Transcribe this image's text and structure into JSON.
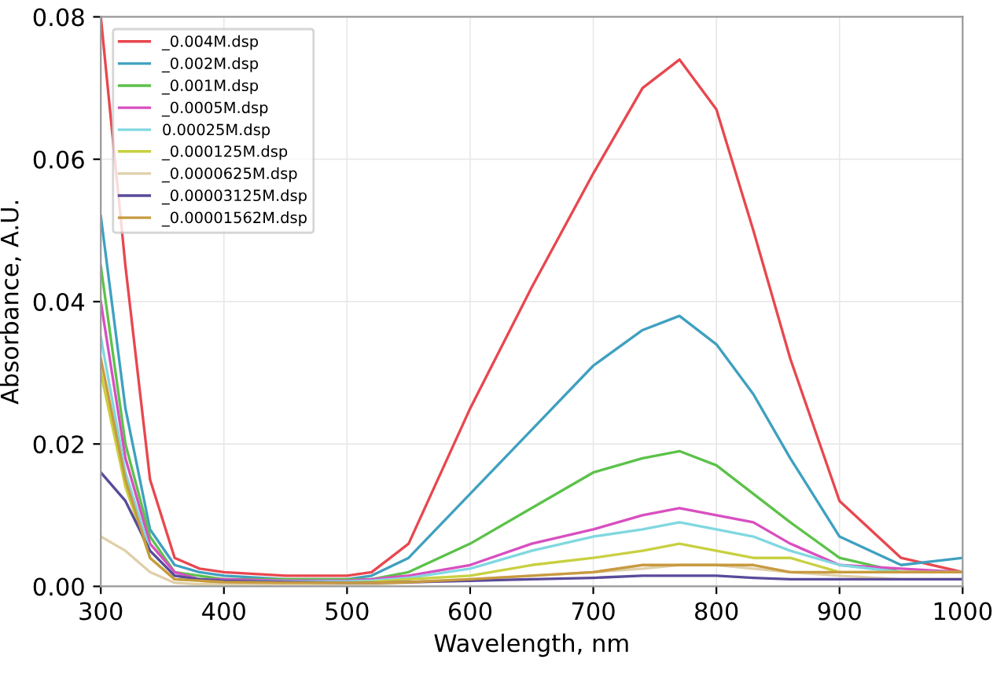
{
  "chart_data": {
    "type": "line",
    "xlabel": "Wavelength, nm",
    "ylabel": "Absorbance, A.U.",
    "x": [
      300,
      320,
      340,
      360,
      380,
      400,
      450,
      500,
      520,
      550,
      600,
      650,
      700,
      740,
      770,
      800,
      830,
      860,
      900,
      950,
      1000
    ],
    "series": [
      {
        "name": "_0.004M.dsp",
        "color": "#e8474f",
        "values": [
          0.08,
          0.045,
          0.015,
          0.004,
          0.0025,
          0.002,
          0.0015,
          0.0015,
          0.002,
          0.006,
          0.025,
          0.042,
          0.058,
          0.07,
          0.074,
          0.067,
          0.05,
          0.032,
          0.012,
          0.004,
          0.002
        ]
      },
      {
        "name": "_0.002M.dsp",
        "color": "#3fa0c0",
        "values": [
          0.052,
          0.025,
          0.008,
          0.003,
          0.002,
          0.0015,
          0.001,
          0.001,
          0.0015,
          0.004,
          0.013,
          0.022,
          0.031,
          0.036,
          0.038,
          0.034,
          0.027,
          0.018,
          0.007,
          0.003,
          0.004
        ]
      },
      {
        "name": "_0.001M.dsp",
        "color": "#5cc24a",
        "values": [
          0.045,
          0.02,
          0.007,
          0.002,
          0.0015,
          0.001,
          0.001,
          0.001,
          0.001,
          0.002,
          0.006,
          0.011,
          0.016,
          0.018,
          0.019,
          0.017,
          0.013,
          0.009,
          0.004,
          0.002,
          0.002
        ]
      },
      {
        "name": "_0.0005M.dsp",
        "color": "#d84fc0",
        "values": [
          0.04,
          0.018,
          0.006,
          0.002,
          0.001,
          0.001,
          0.0008,
          0.0008,
          0.001,
          0.0015,
          0.003,
          0.006,
          0.008,
          0.01,
          0.011,
          0.01,
          0.009,
          0.006,
          0.003,
          0.0025,
          0.002
        ]
      },
      {
        "name": "0.00025M.dsp",
        "color": "#80d8e0",
        "values": [
          0.035,
          0.016,
          0.005,
          0.0015,
          0.001,
          0.0008,
          0.0007,
          0.0007,
          0.0008,
          0.0012,
          0.0025,
          0.005,
          0.007,
          0.008,
          0.009,
          0.008,
          0.007,
          0.005,
          0.003,
          0.002,
          0.002
        ]
      },
      {
        "name": "_0.000125M.dsp",
        "color": "#c8d040",
        "values": [
          0.03,
          0.014,
          0.004,
          0.001,
          0.0008,
          0.0006,
          0.0005,
          0.0005,
          0.0006,
          0.001,
          0.0015,
          0.003,
          0.004,
          0.005,
          0.006,
          0.005,
          0.004,
          0.004,
          0.002,
          0.002,
          0.002
        ]
      },
      {
        "name": "_0.0000625M.dsp",
        "color": "#e0d0a8",
        "values": [
          0.007,
          0.005,
          0.002,
          0.0005,
          0.0003,
          0.0003,
          0.0003,
          0.0003,
          0.0003,
          0.0005,
          0.001,
          0.0015,
          0.002,
          0.0025,
          0.003,
          0.003,
          0.0025,
          0.002,
          0.0015,
          0.001,
          0.001
        ]
      },
      {
        "name": "_0.00003125M.dsp",
        "color": "#5a4a9a",
        "values": [
          0.016,
          0.012,
          0.005,
          0.0015,
          0.001,
          0.0008,
          0.0006,
          0.0005,
          0.0005,
          0.0006,
          0.0008,
          0.001,
          0.0012,
          0.0015,
          0.0015,
          0.0015,
          0.0012,
          0.001,
          0.001,
          0.001,
          0.001
        ]
      },
      {
        "name": "_0.00001562M.dsp",
        "color": "#c89a40",
        "values": [
          0.032,
          0.015,
          0.004,
          0.001,
          0.0008,
          0.0006,
          0.0005,
          0.0005,
          0.0005,
          0.0006,
          0.001,
          0.0015,
          0.002,
          0.003,
          0.003,
          0.003,
          0.003,
          0.002,
          0.002,
          0.002,
          0.002
        ]
      }
    ],
    "xlim": [
      300,
      1000
    ],
    "xticks": [
      300,
      400,
      500,
      600,
      700,
      800,
      900,
      1000
    ],
    "ylim": [
      0,
      0.08
    ],
    "yticks": [
      {
        "value": 0,
        "label": "0.00"
      },
      {
        "value": 0.02,
        "label": "0.02"
      },
      {
        "value": 0.04,
        "label": "0.04"
      },
      {
        "value": 0.06,
        "label": "0.06"
      },
      {
        "value": 0.08,
        "label": "0.08"
      }
    ],
    "grid": true,
    "legend": "top left"
  }
}
